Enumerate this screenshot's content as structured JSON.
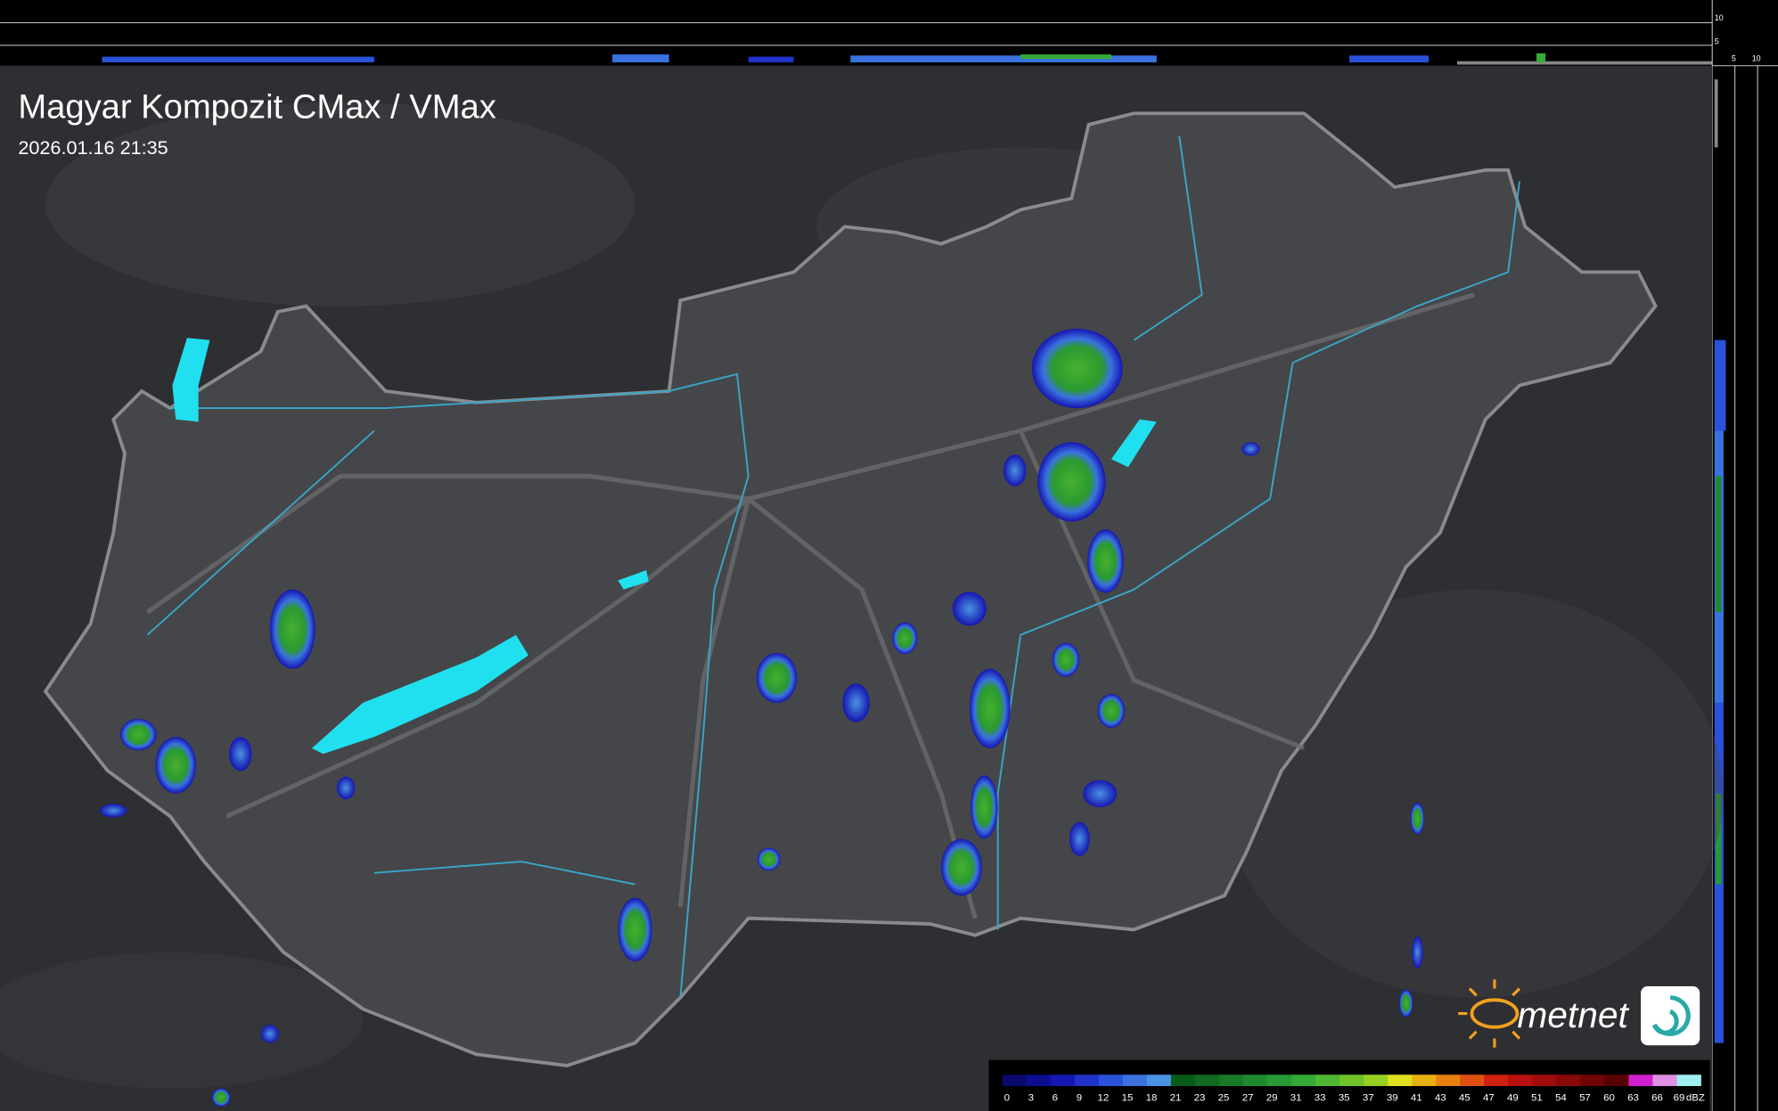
{
  "header": {
    "title": "Magyar Kompozit CMax / VMax",
    "timestamp": "2026.01.16 21:35"
  },
  "profile_axis": {
    "top_labels": [
      10,
      5
    ],
    "bottom_labels": [
      5,
      10
    ]
  },
  "brand": "metnet",
  "legend": {
    "unit": "dBZ",
    "items": [
      {
        "value": 0,
        "color": "#0a0a6e"
      },
      {
        "value": 3,
        "color": "#0d0d90"
      },
      {
        "value": 6,
        "color": "#1616b0"
      },
      {
        "value": 9,
        "color": "#2032c8"
      },
      {
        "value": 12,
        "color": "#2a52d8"
      },
      {
        "value": 15,
        "color": "#3a72e0"
      },
      {
        "value": 18,
        "color": "#4a92e2"
      },
      {
        "value": 21,
        "color": "#0a5a1a"
      },
      {
        "value": 23,
        "color": "#106a20"
      },
      {
        "value": 25,
        "color": "#187a28"
      },
      {
        "value": 27,
        "color": "#208a30"
      },
      {
        "value": 29,
        "color": "#289a35"
      },
      {
        "value": 31,
        "color": "#35aa35"
      },
      {
        "value": 33,
        "color": "#50b830"
      },
      {
        "value": 35,
        "color": "#70c428"
      },
      {
        "value": 37,
        "color": "#98d020"
      },
      {
        "value": 39,
        "color": "#e0e020"
      },
      {
        "value": 41,
        "color": "#e8b010"
      },
      {
        "value": 43,
        "color": "#e88010"
      },
      {
        "value": 45,
        "color": "#e05010"
      },
      {
        "value": 47,
        "color": "#d02010"
      },
      {
        "value": 49,
        "color": "#b81010"
      },
      {
        "value": 51,
        "color": "#a00c0c"
      },
      {
        "value": 54,
        "color": "#880808"
      },
      {
        "value": 57,
        "color": "#700505"
      },
      {
        "value": 60,
        "color": "#580303"
      },
      {
        "value": 63,
        "color": "#d020d0"
      },
      {
        "value": 66,
        "color": "#e090e0"
      },
      {
        "value": 69,
        "color": "#a0f0f0"
      }
    ]
  }
}
